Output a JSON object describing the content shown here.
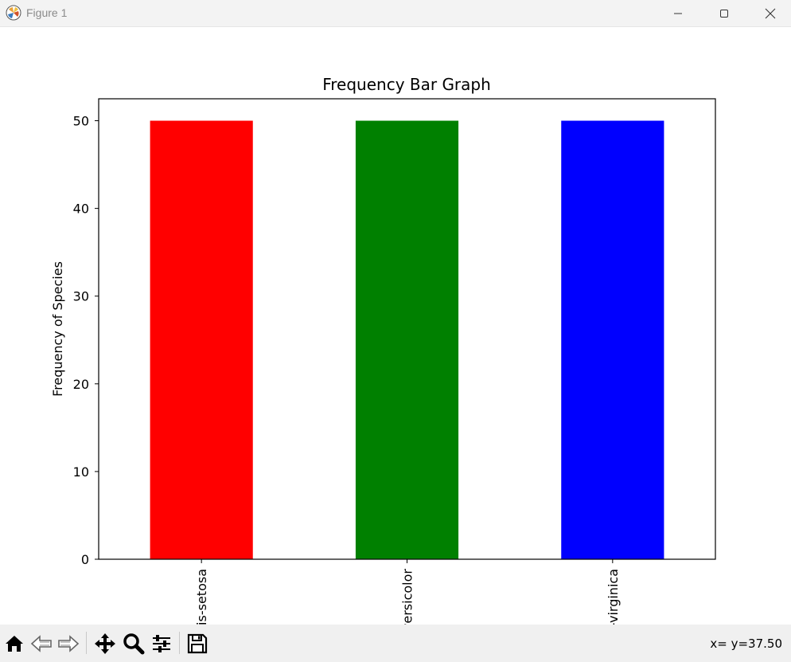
{
  "window": {
    "title": "Figure 1",
    "minimize_icon": "minimize-icon",
    "maximize_icon": "maximize-icon",
    "close_icon": "close-icon"
  },
  "toolbar": {
    "tools": [
      {
        "name": "home-icon"
      },
      {
        "name": "back-arrow-icon"
      },
      {
        "name": "forward-arrow-icon"
      },
      {
        "name": "pan-icon"
      },
      {
        "name": "zoom-icon"
      },
      {
        "name": "subplots-icon"
      },
      {
        "name": "save-icon"
      }
    ],
    "coords": {
      "x_label": "x=",
      "y_label": "y=37.50"
    }
  },
  "chart_data": {
    "type": "bar",
    "title": "Frequency Bar Graph",
    "xlabel": "",
    "ylabel": "Frequency of Species",
    "categories": [
      "Iris-setosa",
      "Iris-versicolor",
      "Iris-virginica"
    ],
    "values": [
      50,
      50,
      50
    ],
    "colors": [
      "#ff0000",
      "#008000",
      "#0000ff"
    ],
    "ylim": [
      0,
      52.5
    ],
    "yticks": [
      0,
      10,
      20,
      30,
      40,
      50
    ],
    "grid": false,
    "legend": "none"
  }
}
